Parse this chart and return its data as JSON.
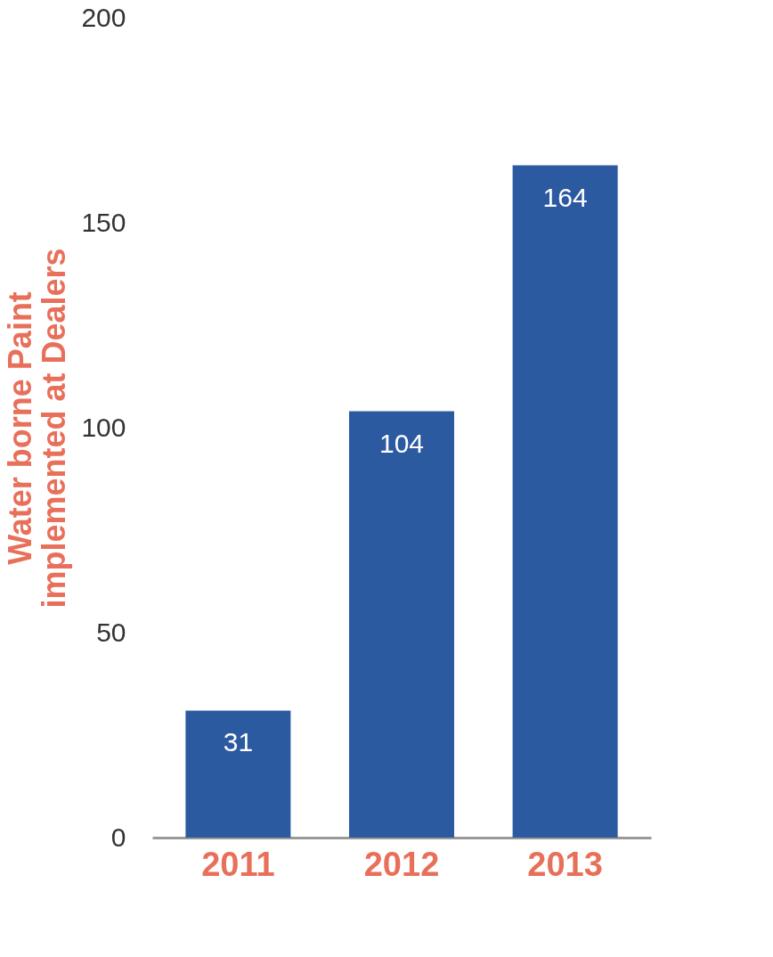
{
  "chart_data": {
    "type": "bar",
    "ylabel": "Water borne Paint\nimplemented at Dealers",
    "categories": [
      "2011",
      "2012",
      "2013"
    ],
    "values": [
      31,
      104,
      164
    ],
    "color": "#2c5aa0",
    "ylim": [
      0,
      200
    ],
    "yticks": [
      0,
      50,
      100,
      150,
      200
    ],
    "grid": false,
    "data_labels": true
  }
}
